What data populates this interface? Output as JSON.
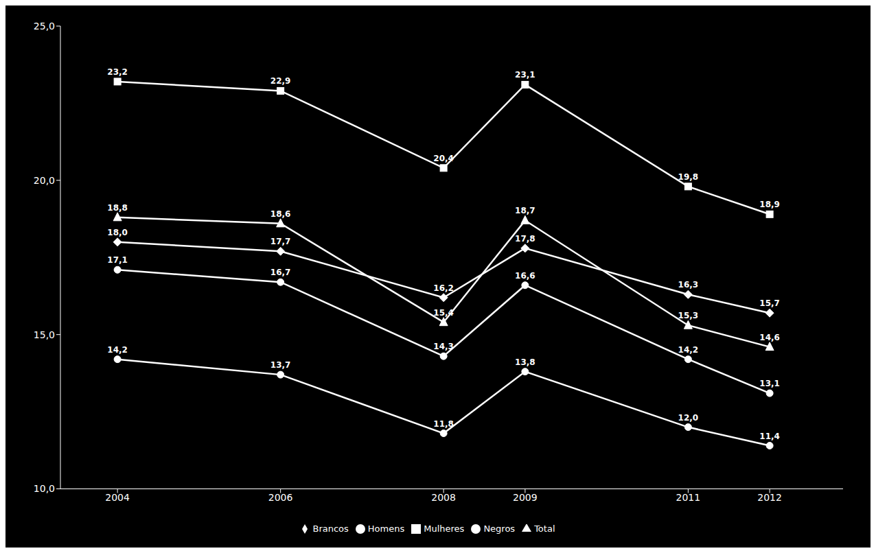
{
  "chart_data": {
    "type": "line",
    "x": [
      2004,
      2006,
      2008,
      2009,
      2011,
      2012
    ],
    "xlim": [
      2003.3,
      2012.9
    ],
    "xticks": [
      2004,
      2006,
      2008,
      2009,
      2011,
      2012
    ],
    "ylim": [
      10.0,
      25.0
    ],
    "yticks": [
      {
        "value": 10.0,
        "label": "10,0"
      },
      {
        "value": 15.0,
        "label": "15,0"
      },
      {
        "value": 20.0,
        "label": "20,0"
      },
      {
        "value": 25.0,
        "label": "25,0"
      }
    ],
    "grid": false,
    "legend": "bottom",
    "data_labels": true,
    "series": [
      {
        "name": "Total",
        "color": "#ffffff",
        "marker": "triangle",
        "values": [
          18.8,
          18.6,
          15.4,
          18.7,
          15.3,
          14.6
        ],
        "value_labels": [
          "18,8",
          "18,6",
          "15,4",
          "18,7",
          "15,3",
          "14,6"
        ]
      },
      {
        "name": "Homens",
        "color": "#ffffff",
        "marker": "circle",
        "values": [
          17.1,
          16.7,
          14.3,
          16.6,
          14.2,
          13.1
        ],
        "value_labels": [
          "17,1",
          "16,7",
          "14,3",
          "16,6",
          "14,2",
          "13,1"
        ]
      },
      {
        "name": "Mulheres",
        "color": "#ffffff",
        "marker": "square",
        "values": [
          23.2,
          22.9,
          20.4,
          23.1,
          19.8,
          18.9
        ],
        "value_labels": [
          "23,2",
          "22,9",
          "20,4",
          "23,1",
          "19,8",
          "18,9"
        ]
      },
      {
        "name": "Brancos",
        "color": "#ffffff",
        "marker": "diamond",
        "values": [
          18.0,
          17.7,
          16.2,
          17.8,
          16.3,
          15.7
        ],
        "value_labels": [
          "18,0",
          "17,7",
          "16,2",
          "17,8",
          "16,3",
          "15,7"
        ]
      },
      {
        "name": "Negros",
        "color": "#ffffff",
        "marker": "circle",
        "values": [
          14.2,
          13.7,
          11.8,
          13.8,
          12.0,
          11.4
        ],
        "value_labels": [
          "14,2",
          "13,7",
          "11,8",
          "13,8",
          "12,0",
          "11,4"
        ]
      }
    ]
  }
}
